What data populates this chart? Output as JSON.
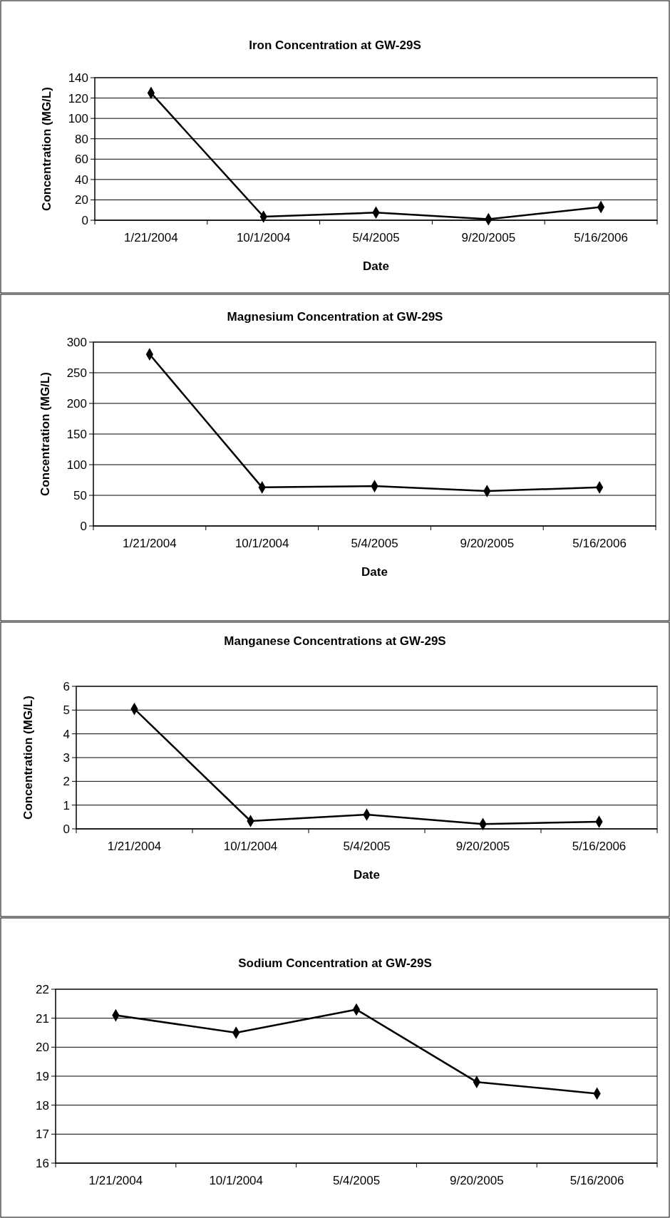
{
  "chart_data": [
    {
      "type": "line",
      "title": "Iron Concentration at GW-29S",
      "xlabel": "Date",
      "ylabel": "Concentration (MG/L)",
      "categories": [
        "1/21/2004",
        "10/1/2004",
        "5/4/2005",
        "9/20/2005",
        "5/16/2006"
      ],
      "values": [
        125,
        3.5,
        7.5,
        1,
        13
      ],
      "color": "#000000",
      "marker": "diamond",
      "grid": "y",
      "ylim": [
        0,
        140
      ],
      "yticks": [
        0,
        20,
        40,
        60,
        80,
        100,
        120,
        140
      ]
    },
    {
      "type": "line",
      "title": "Magnesium Concentration at GW-29S",
      "xlabel": "Date",
      "ylabel": "Concentration (MG/L)",
      "categories": [
        "1/21/2004",
        "10/1/2004",
        "5/4/2005",
        "9/20/2005",
        "5/16/2006"
      ],
      "values": [
        280,
        63,
        65,
        57,
        63
      ],
      "color": "#000000",
      "marker": "diamond",
      "grid": "y",
      "ylim": [
        0,
        300
      ],
      "yticks": [
        0,
        50,
        100,
        150,
        200,
        250,
        300
      ]
    },
    {
      "type": "line",
      "title": "Manganese Concentrations at GW-29S",
      "xlabel": "Date",
      "ylabel": "Concentration (MG/L)",
      "categories": [
        "1/21/2004",
        "10/1/2004",
        "5/4/2005",
        "9/20/2005",
        "5/16/2006"
      ],
      "values": [
        5.05,
        0.33,
        0.6,
        0.2,
        0.3
      ],
      "color": "#000000",
      "marker": "diamond",
      "grid": "y",
      "ylim": [
        0,
        6
      ],
      "yticks": [
        0,
        1,
        2,
        3,
        4,
        5,
        6
      ]
    },
    {
      "type": "line",
      "title": "Sodium Concentration at GW-29S",
      "categories": [
        "1/21/2004",
        "10/1/2004",
        "5/4/2005",
        "9/20/2005",
        "5/16/2006"
      ],
      "values": [
        21.1,
        20.5,
        21.3,
        18.8,
        18.4
      ],
      "color": "#000000",
      "marker": "diamond",
      "grid": "y",
      "ylim": [
        16,
        22
      ],
      "yticks": [
        16,
        17,
        18,
        19,
        20,
        21,
        22
      ]
    }
  ]
}
